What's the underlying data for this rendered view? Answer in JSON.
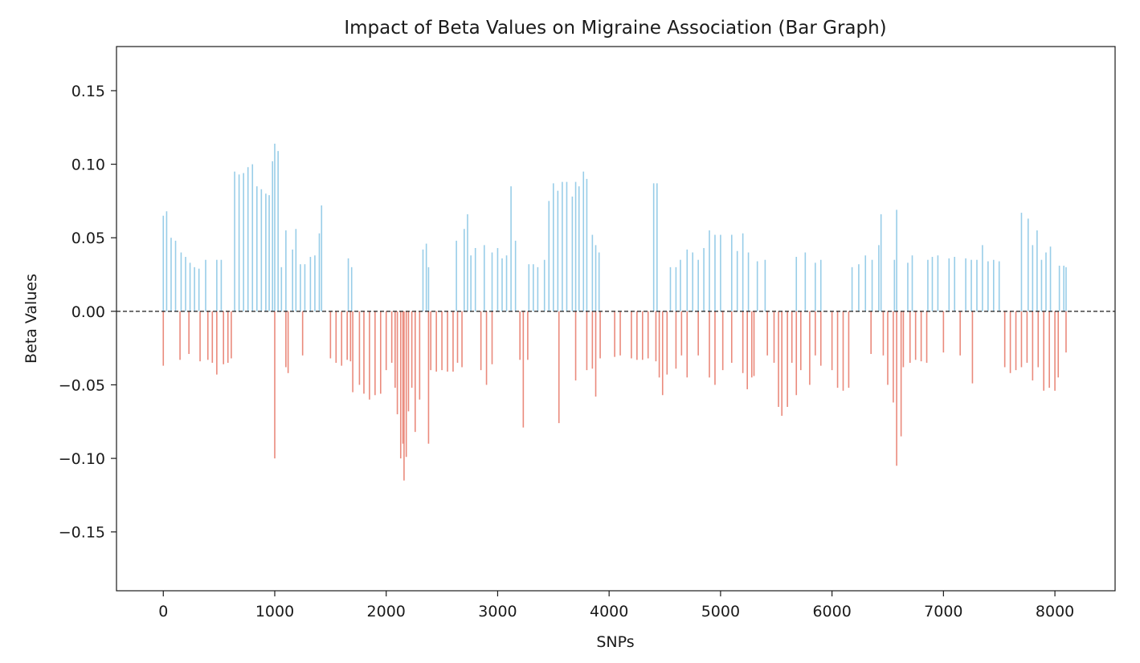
{
  "chart_data": {
    "type": "bar",
    "title": "Impact of Beta Values on Migraine Association (Bar Graph)",
    "xlabel": "SNPs",
    "ylabel": "Beta Values",
    "xlim": [
      -420,
      8540
    ],
    "ylim": [
      -0.19,
      0.18
    ],
    "xticks": [
      0,
      1000,
      2000,
      3000,
      4000,
      5000,
      6000,
      7000,
      8000
    ],
    "yticks": [
      -0.15,
      -0.1,
      -0.05,
      0.0,
      0.05,
      0.1,
      0.15
    ],
    "ytick_labels": [
      "−0.15",
      "−0.10",
      "−0.05",
      "0.00",
      "0.05",
      "0.10",
      "0.15"
    ],
    "reference_line": 0.0,
    "colors": {
      "positive": "#98cde8",
      "negative": "#ea8a7c",
      "axis": "#1a1a1a"
    },
    "positive_series": [
      [
        0,
        0.065
      ],
      [
        30,
        0.068
      ],
      [
        70,
        0.05
      ],
      [
        110,
        0.048
      ],
      [
        160,
        0.04
      ],
      [
        200,
        0.037
      ],
      [
        240,
        0.033
      ],
      [
        280,
        0.03
      ],
      [
        320,
        0.029
      ],
      [
        380,
        0.035
      ],
      [
        480,
        0.035
      ],
      [
        520,
        0.035
      ],
      [
        640,
        0.095
      ],
      [
        680,
        0.093
      ],
      [
        720,
        0.094
      ],
      [
        760,
        0.098
      ],
      [
        800,
        0.1
      ],
      [
        840,
        0.085
      ],
      [
        880,
        0.083
      ],
      [
        920,
        0.08
      ],
      [
        950,
        0.079
      ],
      [
        980,
        0.102
      ],
      [
        1000,
        0.114
      ],
      [
        1030,
        0.109
      ],
      [
        1060,
        0.03
      ],
      [
        1100,
        0.055
      ],
      [
        1160,
        0.042
      ],
      [
        1190,
        0.056
      ],
      [
        1230,
        0.032
      ],
      [
        1270,
        0.032
      ],
      [
        1320,
        0.037
      ],
      [
        1360,
        0.038
      ],
      [
        1400,
        0.053
      ],
      [
        1420,
        0.072
      ],
      [
        1660,
        0.036
      ],
      [
        1690,
        0.03
      ],
      [
        2330,
        0.042
      ],
      [
        2360,
        0.046
      ],
      [
        2380,
        0.03
      ],
      [
        2630,
        0.048
      ],
      [
        2700,
        0.056
      ],
      [
        2730,
        0.066
      ],
      [
        2760,
        0.038
      ],
      [
        2800,
        0.043
      ],
      [
        2880,
        0.045
      ],
      [
        2950,
        0.04
      ],
      [
        3000,
        0.043
      ],
      [
        3040,
        0.036
      ],
      [
        3080,
        0.038
      ],
      [
        3120,
        0.085
      ],
      [
        3160,
        0.048
      ],
      [
        3280,
        0.032
      ],
      [
        3320,
        0.032
      ],
      [
        3360,
        0.03
      ],
      [
        3420,
        0.035
      ],
      [
        3460,
        0.075
      ],
      [
        3500,
        0.087
      ],
      [
        3540,
        0.082
      ],
      [
        3580,
        0.088
      ],
      [
        3620,
        0.088
      ],
      [
        3670,
        0.078
      ],
      [
        3700,
        0.088
      ],
      [
        3730,
        0.085
      ],
      [
        3770,
        0.095
      ],
      [
        3800,
        0.09
      ],
      [
        3850,
        0.052
      ],
      [
        3880,
        0.045
      ],
      [
        3910,
        0.04
      ],
      [
        4400,
        0.087
      ],
      [
        4430,
        0.087
      ],
      [
        4550,
        0.03
      ],
      [
        4600,
        0.03
      ],
      [
        4640,
        0.035
      ],
      [
        4700,
        0.042
      ],
      [
        4750,
        0.04
      ],
      [
        4800,
        0.035
      ],
      [
        4850,
        0.043
      ],
      [
        4900,
        0.055
      ],
      [
        4950,
        0.052
      ],
      [
        5000,
        0.052
      ],
      [
        5100,
        0.052
      ],
      [
        5150,
        0.041
      ],
      [
        5200,
        0.053
      ],
      [
        5250,
        0.04
      ],
      [
        5330,
        0.034
      ],
      [
        5400,
        0.035
      ],
      [
        5680,
        0.037
      ],
      [
        5760,
        0.04
      ],
      [
        5850,
        0.033
      ],
      [
        5900,
        0.035
      ],
      [
        6180,
        0.03
      ],
      [
        6240,
        0.032
      ],
      [
        6300,
        0.038
      ],
      [
        6360,
        0.035
      ],
      [
        6420,
        0.045
      ],
      [
        6440,
        0.066
      ],
      [
        6560,
        0.035
      ],
      [
        6580,
        0.069
      ],
      [
        6680,
        0.033
      ],
      [
        6720,
        0.038
      ],
      [
        6860,
        0.035
      ],
      [
        6900,
        0.037
      ],
      [
        6950,
        0.038
      ],
      [
        7050,
        0.036
      ],
      [
        7100,
        0.037
      ],
      [
        7200,
        0.036
      ],
      [
        7250,
        0.035
      ],
      [
        7300,
        0.035
      ],
      [
        7350,
        0.045
      ],
      [
        7400,
        0.034
      ],
      [
        7450,
        0.035
      ],
      [
        7500,
        0.034
      ],
      [
        7700,
        0.067
      ],
      [
        7760,
        0.063
      ],
      [
        7800,
        0.045
      ],
      [
        7840,
        0.055
      ],
      [
        7880,
        0.035
      ],
      [
        7920,
        0.04
      ],
      [
        7960,
        0.044
      ],
      [
        8040,
        0.031
      ],
      [
        8080,
        0.031
      ],
      [
        8100,
        0.03
      ]
    ],
    "negative_series": [
      [
        0,
        -0.037
      ],
      [
        150,
        -0.033
      ],
      [
        230,
        -0.029
      ],
      [
        330,
        -0.034
      ],
      [
        400,
        -0.033
      ],
      [
        440,
        -0.035
      ],
      [
        480,
        -0.043
      ],
      [
        540,
        -0.036
      ],
      [
        580,
        -0.035
      ],
      [
        610,
        -0.032
      ],
      [
        1000,
        -0.1
      ],
      [
        1100,
        -0.038
      ],
      [
        1120,
        -0.042
      ],
      [
        1250,
        -0.03
      ],
      [
        1500,
        -0.032
      ],
      [
        1550,
        -0.035
      ],
      [
        1600,
        -0.037
      ],
      [
        1650,
        -0.033
      ],
      [
        1680,
        -0.034
      ],
      [
        1700,
        -0.055
      ],
      [
        1760,
        -0.05
      ],
      [
        1800,
        -0.056
      ],
      [
        1850,
        -0.06
      ],
      [
        1900,
        -0.057
      ],
      [
        1950,
        -0.056
      ],
      [
        2000,
        -0.04
      ],
      [
        2050,
        -0.035
      ],
      [
        2080,
        -0.052
      ],
      [
        2100,
        -0.07
      ],
      [
        2130,
        -0.1
      ],
      [
        2150,
        -0.09
      ],
      [
        2160,
        -0.115
      ],
      [
        2180,
        -0.099
      ],
      [
        2200,
        -0.068
      ],
      [
        2230,
        -0.052
      ],
      [
        2260,
        -0.082
      ],
      [
        2300,
        -0.06
      ],
      [
        2380,
        -0.09
      ],
      [
        2400,
        -0.04
      ],
      [
        2450,
        -0.041
      ],
      [
        2500,
        -0.04
      ],
      [
        2550,
        -0.041
      ],
      [
        2600,
        -0.041
      ],
      [
        2640,
        -0.035
      ],
      [
        2680,
        -0.038
      ],
      [
        2850,
        -0.04
      ],
      [
        2900,
        -0.05
      ],
      [
        2950,
        -0.036
      ],
      [
        3200,
        -0.033
      ],
      [
        3230,
        -0.079
      ],
      [
        3270,
        -0.033
      ],
      [
        3550,
        -0.076
      ],
      [
        3700,
        -0.047
      ],
      [
        3800,
        -0.04
      ],
      [
        3850,
        -0.039
      ],
      [
        3880,
        -0.058
      ],
      [
        3920,
        -0.032
      ],
      [
        4050,
        -0.031
      ],
      [
        4100,
        -0.03
      ],
      [
        4200,
        -0.032
      ],
      [
        4250,
        -0.033
      ],
      [
        4300,
        -0.033
      ],
      [
        4350,
        -0.032
      ],
      [
        4420,
        -0.034
      ],
      [
        4450,
        -0.045
      ],
      [
        4480,
        -0.057
      ],
      [
        4520,
        -0.043
      ],
      [
        4600,
        -0.039
      ],
      [
        4650,
        -0.03
      ],
      [
        4700,
        -0.045
      ],
      [
        4800,
        -0.03
      ],
      [
        4900,
        -0.045
      ],
      [
        4950,
        -0.05
      ],
      [
        5020,
        -0.04
      ],
      [
        5100,
        -0.035
      ],
      [
        5200,
        -0.042
      ],
      [
        5240,
        -0.053
      ],
      [
        5280,
        -0.045
      ],
      [
        5300,
        -0.044
      ],
      [
        5420,
        -0.03
      ],
      [
        5480,
        -0.035
      ],
      [
        5520,
        -0.065
      ],
      [
        5550,
        -0.071
      ],
      [
        5600,
        -0.065
      ],
      [
        5640,
        -0.035
      ],
      [
        5680,
        -0.057
      ],
      [
        5720,
        -0.04
      ],
      [
        5800,
        -0.05
      ],
      [
        5850,
        -0.03
      ],
      [
        5900,
        -0.037
      ],
      [
        6000,
        -0.04
      ],
      [
        6050,
        -0.052
      ],
      [
        6100,
        -0.054
      ],
      [
        6150,
        -0.052
      ],
      [
        6350,
        -0.029
      ],
      [
        6460,
        -0.03
      ],
      [
        6500,
        -0.05
      ],
      [
        6550,
        -0.062
      ],
      [
        6580,
        -0.105
      ],
      [
        6620,
        -0.085
      ],
      [
        6640,
        -0.038
      ],
      [
        6700,
        -0.035
      ],
      [
        6750,
        -0.033
      ],
      [
        6800,
        -0.034
      ],
      [
        6850,
        -0.035
      ],
      [
        7000,
        -0.028
      ],
      [
        7150,
        -0.03
      ],
      [
        7260,
        -0.049
      ],
      [
        7550,
        -0.038
      ],
      [
        7600,
        -0.042
      ],
      [
        7650,
        -0.04
      ],
      [
        7700,
        -0.038
      ],
      [
        7750,
        -0.035
      ],
      [
        7800,
        -0.047
      ],
      [
        7850,
        -0.038
      ],
      [
        7900,
        -0.054
      ],
      [
        7950,
        -0.052
      ],
      [
        8000,
        -0.054
      ],
      [
        8030,
        -0.045
      ],
      [
        8100,
        -0.028
      ]
    ]
  }
}
